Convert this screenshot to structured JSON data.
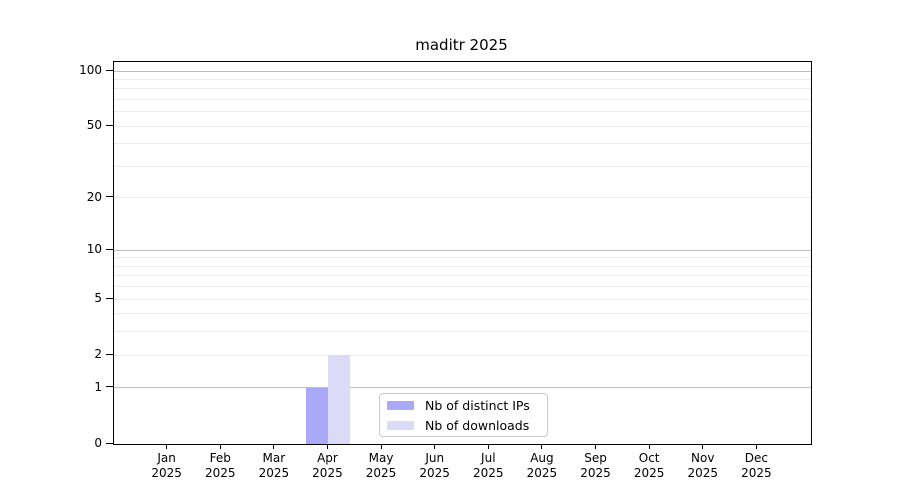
{
  "chart_data": {
    "type": "bar",
    "title": "maditr 2025",
    "categories": [
      "Jan 2025",
      "Feb 2025",
      "Mar 2025",
      "Apr 2025",
      "May 2025",
      "Jun 2025",
      "Jul 2025",
      "Aug 2025",
      "Sep 2025",
      "Oct 2025",
      "Nov 2025",
      "Dec 2025"
    ],
    "series": [
      {
        "key": "distinct-ips",
        "name": "Nb of distinct IPs",
        "color": "#a9a9f7",
        "values": [
          0,
          0,
          0,
          1,
          0,
          0,
          0,
          0,
          0,
          0,
          0,
          0
        ]
      },
      {
        "key": "downloads",
        "name": "Nb of downloads",
        "color": "#dbdbf8",
        "values": [
          0,
          0,
          0,
          2,
          0,
          0,
          0,
          0,
          0,
          0,
          0,
          0
        ]
      }
    ],
    "y_axis": {
      "scale": "log1p",
      "ylim": [
        0,
        112
      ],
      "ticks": [
        0,
        1,
        2,
        5,
        10,
        20,
        50,
        100
      ],
      "major_gridlines": [
        1,
        10,
        100
      ],
      "minor_gridlines": [
        2,
        3,
        4,
        5,
        6,
        7,
        8,
        9,
        20,
        30,
        40,
        50,
        60,
        70,
        80,
        90
      ]
    },
    "legend": {
      "position": "lower center",
      "entries": [
        "Nb of distinct IPs",
        "Nb of downloads"
      ]
    },
    "grid": "horizontal",
    "xlabel": "",
    "ylabel": ""
  },
  "colors": {
    "background": "#ffffff",
    "spine": "#000000",
    "major_grid": "#bfbfbf",
    "minor_grid": "#ebebeb",
    "bar_distinct_ips": "#a9a9f7",
    "bar_downloads": "#dbdbf8",
    "legend_border": "#cccccc"
  }
}
